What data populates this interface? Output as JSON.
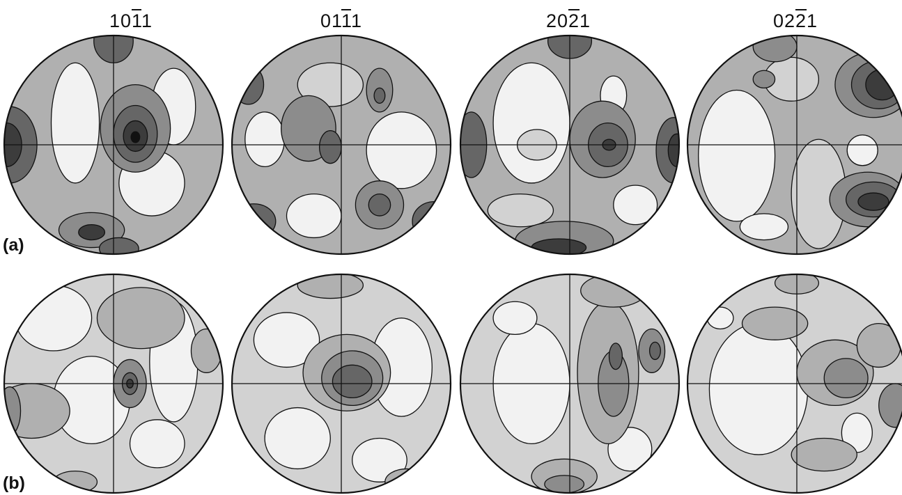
{
  "columns": [
    {
      "pre": "10",
      "bar": "1",
      "post": "1"
    },
    {
      "pre": "01",
      "bar": "1",
      "post": "1"
    },
    {
      "pre": "20",
      "bar": "2",
      "post": "1"
    },
    {
      "pre": "02",
      "bar": "2",
      "post": "1"
    }
  ],
  "rows": [
    {
      "label": "(a)"
    },
    {
      "label": "(b)"
    }
  ],
  "colors": {
    "background": "#ffffff",
    "outline": "#111111",
    "levels": [
      "#f2f2f2",
      "#d2d2d2",
      "#b0b0b0",
      "#8c8c8c",
      "#666666",
      "#3c3c3c",
      "#111111"
    ]
  }
}
